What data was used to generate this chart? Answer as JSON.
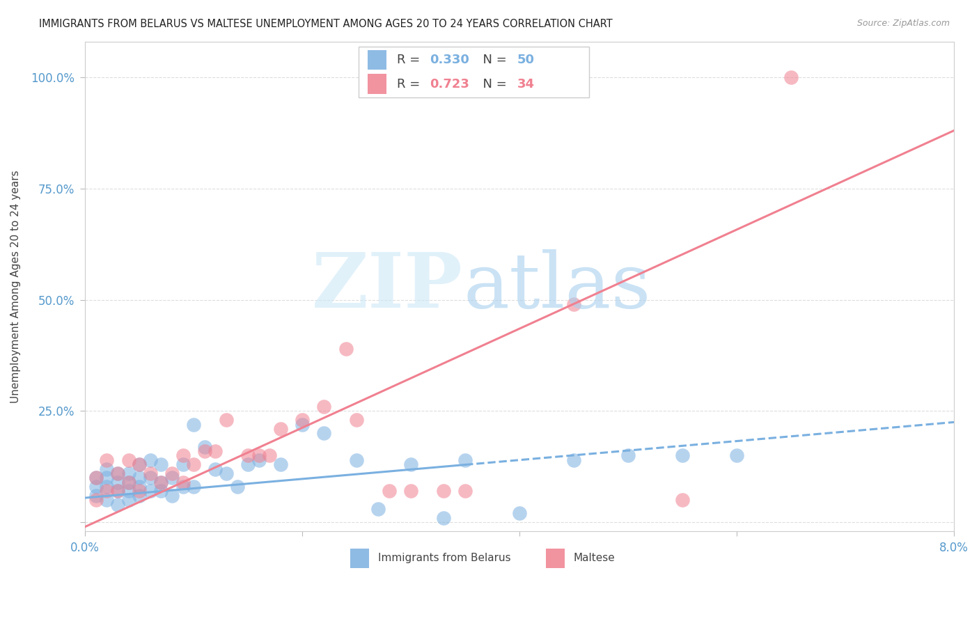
{
  "title": "IMMIGRANTS FROM BELARUS VS MALTESE UNEMPLOYMENT AMONG AGES 20 TO 24 YEARS CORRELATION CHART",
  "source": "Source: ZipAtlas.com",
  "ylabel": "Unemployment Among Ages 20 to 24 years",
  "xlim": [
    0.0,
    0.08
  ],
  "ylim": [
    -0.02,
    1.08
  ],
  "x_ticks": [
    0.0,
    0.02,
    0.04,
    0.06,
    0.08
  ],
  "x_tick_labels": [
    "0.0%",
    "",
    "",
    "",
    "8.0%"
  ],
  "y_ticks": [
    0.0,
    0.25,
    0.5,
    0.75,
    1.0
  ],
  "y_tick_labels": [
    "",
    "25.0%",
    "50.0%",
    "75.0%",
    "100.0%"
  ],
  "series1_color": "#7ab0e0",
  "series2_color": "#f08090",
  "series1_label": "Immigrants from Belarus",
  "series2_label": "Maltese",
  "series1_R": "0.330",
  "series1_N": "50",
  "series2_R": "0.723",
  "series2_N": "34",
  "background_color": "#ffffff",
  "grid_color": "#dddddd",
  "series1_x": [
    0.001,
    0.001,
    0.001,
    0.002,
    0.002,
    0.002,
    0.002,
    0.003,
    0.003,
    0.003,
    0.003,
    0.004,
    0.004,
    0.004,
    0.004,
    0.005,
    0.005,
    0.005,
    0.005,
    0.006,
    0.006,
    0.006,
    0.007,
    0.007,
    0.007,
    0.008,
    0.008,
    0.009,
    0.009,
    0.01,
    0.01,
    0.011,
    0.012,
    0.013,
    0.014,
    0.015,
    0.016,
    0.018,
    0.02,
    0.022,
    0.025,
    0.027,
    0.03,
    0.033,
    0.035,
    0.04,
    0.045,
    0.05,
    0.055,
    0.06
  ],
  "series1_y": [
    0.06,
    0.08,
    0.1,
    0.05,
    0.08,
    0.1,
    0.12,
    0.04,
    0.07,
    0.09,
    0.11,
    0.05,
    0.07,
    0.09,
    0.11,
    0.06,
    0.08,
    0.1,
    0.13,
    0.07,
    0.1,
    0.14,
    0.07,
    0.09,
    0.13,
    0.06,
    0.1,
    0.08,
    0.13,
    0.08,
    0.22,
    0.17,
    0.12,
    0.11,
    0.08,
    0.13,
    0.14,
    0.13,
    0.22,
    0.2,
    0.14,
    0.03,
    0.13,
    0.01,
    0.14,
    0.02,
    0.14,
    0.15,
    0.15,
    0.15
  ],
  "series2_x": [
    0.001,
    0.001,
    0.002,
    0.002,
    0.003,
    0.003,
    0.004,
    0.004,
    0.005,
    0.005,
    0.006,
    0.007,
    0.008,
    0.009,
    0.009,
    0.01,
    0.011,
    0.012,
    0.013,
    0.015,
    0.016,
    0.017,
    0.018,
    0.02,
    0.022,
    0.024,
    0.025,
    0.028,
    0.03,
    0.033,
    0.035,
    0.045,
    0.055,
    0.065
  ],
  "series2_y": [
    0.05,
    0.1,
    0.07,
    0.14,
    0.07,
    0.11,
    0.09,
    0.14,
    0.07,
    0.13,
    0.11,
    0.09,
    0.11,
    0.09,
    0.15,
    0.13,
    0.16,
    0.16,
    0.23,
    0.15,
    0.15,
    0.15,
    0.21,
    0.23,
    0.26,
    0.39,
    0.23,
    0.07,
    0.07,
    0.07,
    0.07,
    0.49,
    0.05,
    1.0
  ],
  "line1_x": [
    0.0,
    0.08
  ],
  "line1_y": [
    0.055,
    0.225
  ],
  "line2_x": [
    0.0,
    0.08
  ],
  "line2_y": [
    -0.01,
    0.88
  ]
}
